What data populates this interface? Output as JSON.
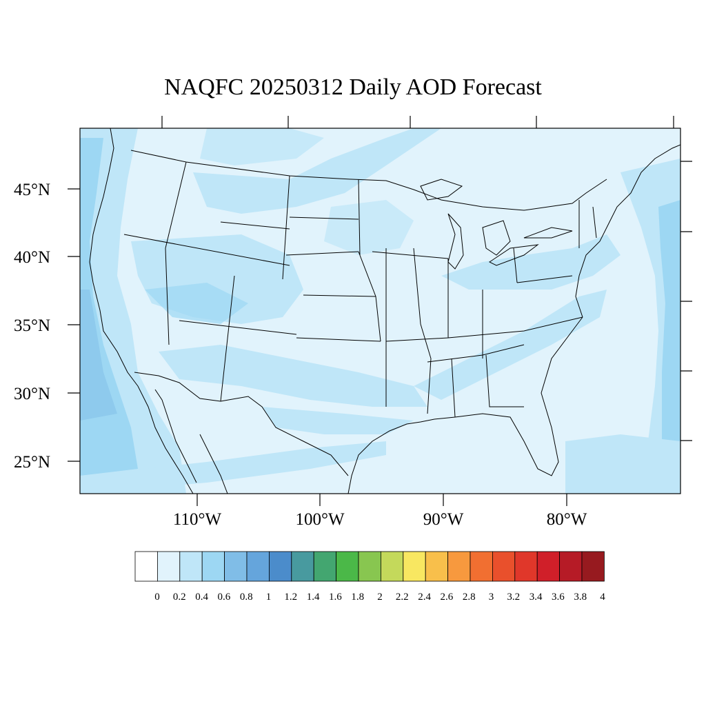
{
  "title": "NAQFC 20250312 Daily AOD Forecast",
  "map": {
    "projection": "lambert-conformal",
    "extent": {
      "lon_min": -120,
      "lon_max": -72,
      "lat_min": 22.5,
      "lat_max": 49.5
    },
    "latitude_labels": [
      "45°N",
      "40°N",
      "35°N",
      "30°N",
      "25°N"
    ],
    "longitude_labels": [
      "110°W",
      "100°W",
      "90°W",
      "80°W"
    ],
    "background_field": "AOD",
    "dominant_aod_range": "0.2–0.6"
  },
  "colorbar": {
    "labels": [
      "0",
      "0.2",
      "0.4",
      "0.6",
      "0.8",
      "1",
      "1.2",
      "1.4",
      "1.6",
      "1.8",
      "2",
      "2.2",
      "2.4",
      "2.6",
      "2.8",
      "3",
      "3.2",
      "3.4",
      "3.6",
      "3.8",
      "4"
    ],
    "colors": [
      "#ffffff",
      "#e1f3fc",
      "#bfe6f8",
      "#9dd7f3",
      "#80bde7",
      "#65a5dc",
      "#4b8ccb",
      "#489a9f",
      "#43a670",
      "#4bb848",
      "#88c650",
      "#c4d95b",
      "#f8e761",
      "#f8bf4b",
      "#f7993e",
      "#f16f31",
      "#e9502c",
      "#e0372a",
      "#d01f29",
      "#b61b26",
      "#971a1f"
    ]
  }
}
